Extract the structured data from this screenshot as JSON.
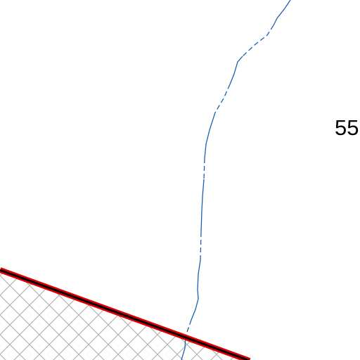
{
  "map_labels": [
    "55"
  ]
}
